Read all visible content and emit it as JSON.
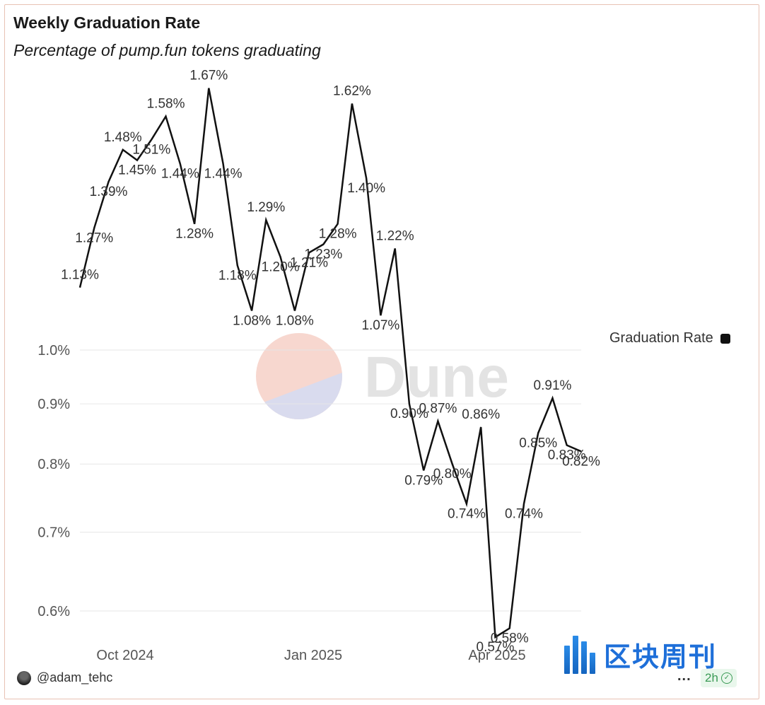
{
  "header": {
    "title": "Weekly Graduation Rate",
    "subtitle": "Percentage of pump.fun tokens graduating"
  },
  "chart_data": {
    "type": "line",
    "title": "Weekly Graduation Rate",
    "subtitle": "Percentage of pump.fun tokens graduating",
    "xlabel": "",
    "ylabel": "",
    "y_scale": "log",
    "y_ticks": [
      "0.6%",
      "0.7%",
      "0.8%",
      "0.9%",
      "1.0%"
    ],
    "y_tick_values": [
      0.6,
      0.7,
      0.8,
      0.9,
      1.0
    ],
    "x_ticks": [
      "Oct 2024",
      "Jan 2025",
      "Apr 2025"
    ],
    "grid": true,
    "legend_position": "right",
    "series": [
      {
        "name": "Graduation Rate",
        "color": "#111111",
        "values": [
          1.13,
          1.27,
          1.39,
          1.48,
          1.45,
          1.51,
          1.58,
          1.44,
          1.28,
          1.67,
          1.44,
          1.18,
          1.08,
          1.29,
          1.2,
          1.08,
          1.21,
          1.23,
          1.28,
          1.62,
          1.4,
          1.07,
          1.22,
          0.9,
          0.79,
          0.87,
          0.8,
          0.74,
          0.86,
          0.57,
          0.58,
          0.74,
          0.85,
          0.91,
          0.83,
          0.82
        ],
        "labels": [
          "1.13%",
          "1.27%",
          "1.39%",
          "1.48%",
          "1.45%",
          "1.51%",
          "1.58%",
          "1.44%",
          "1.28%",
          "1.67%",
          "1.44%",
          "1.18%",
          "1.08%",
          "1.29%",
          "1.20%",
          "1.08%",
          "1.21%",
          "1.23%",
          "1.28%",
          "1.62%",
          "1.40%",
          "1.07%",
          "1.22%",
          "0.90%",
          "0.79%",
          "0.87%",
          "0.80%",
          "0.74%",
          "0.86%",
          "0.57%",
          "0.58%",
          "0.74%",
          "0.85%",
          "0.91%",
          "0.83%",
          "0.82%"
        ]
      }
    ]
  },
  "legend": {
    "label": "Graduation Rate",
    "color": "#111111"
  },
  "watermark": {
    "text": "Dune"
  },
  "footer": {
    "author": "@adam_tehc",
    "more_label": "...",
    "age": "2h",
    "brand": "区块周刊"
  }
}
